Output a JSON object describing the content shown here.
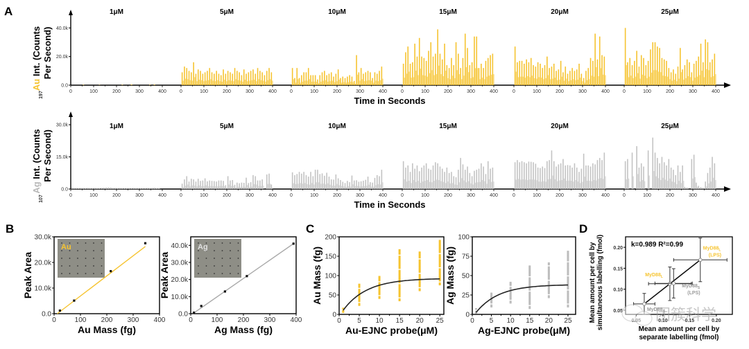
{
  "colors": {
    "au": "#f6c431",
    "ag": "#c3c3c3",
    "axis": "#000000",
    "fit": "#222222"
  },
  "panels": {
    "A": {
      "letter": "A"
    },
    "B": {
      "letter": "B"
    },
    "C": {
      "letter": "C"
    },
    "D": {
      "letter": "D"
    }
  },
  "watermark": {
    "text": "团簇科学"
  },
  "chart_data": [
    {
      "id": "A-top",
      "type": "bar",
      "title": "",
      "element_mass": "197",
      "element": "Au",
      "ylabel_rest": "Int. (Counts",
      "ylabel_line2": "Per Second)",
      "xlabel": "Time in Seconds",
      "ylim": [
        0,
        45000
      ],
      "yticks": [
        "0.0",
        "20.0k",
        "40.0k"
      ],
      "ytick_values": [
        0,
        20000,
        40000
      ],
      "xticks": [
        "0",
        "100",
        "200",
        "300",
        "400"
      ],
      "groups": [
        {
          "label": "1μM",
          "values": [
            0,
            0,
            0,
            0,
            0,
            300,
            0,
            0,
            0,
            0,
            0,
            0,
            200,
            0,
            0,
            0,
            0,
            0,
            0,
            0,
            0,
            0,
            300,
            0,
            0,
            0,
            500,
            0,
            0,
            0,
            0,
            0,
            0,
            0,
            300,
            0,
            400,
            0,
            0,
            0
          ]
        },
        {
          "label": "5μM",
          "values": [
            9000,
            13000,
            12000,
            10000,
            9000,
            16000,
            8000,
            11000,
            10000,
            8000,
            9000,
            10000,
            12000,
            9000,
            8000,
            10000,
            8000,
            7000,
            11000,
            8000,
            10000,
            9000,
            8000,
            12000,
            10000,
            9000,
            7000,
            11000,
            8000,
            9000,
            10000,
            11000,
            8000,
            12000,
            10000,
            9000,
            7000,
            10000,
            12000,
            9000
          ]
        },
        {
          "label": "10μM",
          "values": [
            12000,
            5000,
            12000,
            5000,
            7000,
            9000,
            9000,
            12000,
            7000,
            7000,
            7000,
            4000,
            7000,
            9000,
            10000,
            7000,
            8000,
            9000,
            6000,
            8000,
            11000,
            5000,
            6000,
            5000,
            6000,
            7000,
            6000,
            3000,
            21000,
            9000,
            12000,
            8000,
            9000,
            10000,
            9000,
            5000,
            9000,
            8000,
            10000,
            13000
          ]
        },
        {
          "label": "15μM",
          "values": [
            15000,
            23000,
            27000,
            15000,
            16000,
            29000,
            20000,
            33000,
            20000,
            19000,
            17000,
            24000,
            30000,
            20000,
            22000,
            39000,
            22000,
            18000,
            29000,
            14000,
            12000,
            19000,
            14000,
            30000,
            22000,
            12000,
            19000,
            36000,
            26000,
            14000,
            16000,
            34000,
            34000,
            12000,
            15000,
            12000,
            17000,
            19000,
            21000,
            22000
          ]
        },
        {
          "label": "20μM",
          "values": [
            27000,
            16000,
            17000,
            17000,
            15000,
            18000,
            16000,
            19000,
            14000,
            13000,
            16000,
            15000,
            12000,
            14000,
            20000,
            12000,
            13000,
            15000,
            10000,
            11000,
            17000,
            9000,
            13000,
            8000,
            10000,
            12000,
            10000,
            11000,
            15000,
            8000,
            5000,
            10000,
            12000,
            19000,
            17000,
            36000,
            18000,
            34000,
            21000,
            20000
          ]
        },
        {
          "label": "25μM",
          "values": [
            40000,
            16000,
            19000,
            14000,
            17000,
            24000,
            13000,
            21000,
            19000,
            14000,
            17000,
            25000,
            30000,
            30000,
            27000,
            26000,
            19000,
            18000,
            17000,
            12000,
            9000,
            11000,
            8000,
            13000,
            26000,
            11000,
            14000,
            18000,
            16000,
            9000,
            15000,
            17000,
            20000,
            29000,
            16000,
            32000,
            30000,
            16000,
            18000,
            22000
          ]
        }
      ]
    },
    {
      "id": "A-bottom",
      "type": "bar",
      "title": "",
      "element_mass": "107",
      "element": "Ag",
      "ylabel_rest": "Int. (Counts",
      "ylabel_line2": "Per Second)",
      "xlabel": "Time in Seconds",
      "ylim": [
        0,
        31000
      ],
      "yticks": [
        "0.0",
        "15.0k",
        "30.0k"
      ],
      "ytick_values": [
        0,
        15000,
        30000
      ],
      "xticks": [
        "0",
        "100",
        "200",
        "300",
        "400"
      ],
      "groups": [
        {
          "label": "1μM",
          "values": [
            600,
            500,
            500,
            400,
            500,
            500,
            400,
            500,
            400,
            400,
            500,
            400,
            300,
            500,
            600,
            700,
            800,
            700,
            500,
            500,
            400,
            500,
            400,
            400,
            300,
            400,
            400,
            500,
            400,
            400,
            400,
            300,
            400,
            500,
            400,
            500,
            600,
            400,
            300,
            0
          ]
        },
        {
          "label": "5μM",
          "values": [
            2500,
            4500,
            6000,
            3500,
            4800,
            4500,
            3500,
            4800,
            3800,
            4000,
            5000,
            3600,
            4000,
            3800,
            3700,
            3500,
            4000,
            4000,
            3800,
            1800,
            6000,
            4000,
            4200,
            2000,
            3000,
            2700,
            3000,
            2900,
            5300,
            2800,
            3200,
            6500,
            6000,
            4000,
            4000,
            4500,
            0,
            6800,
            7200,
            2100
          ]
        },
        {
          "label": "10μM",
          "values": [
            7800,
            6500,
            7000,
            8000,
            7200,
            8000,
            6500,
            5800,
            8000,
            6000,
            9000,
            9000,
            7000,
            7300,
            6200,
            7600,
            5800,
            4500,
            4400,
            6800,
            5000,
            4200,
            3400,
            2800,
            3800,
            3200,
            6300,
            4000,
            4100,
            3400,
            3600,
            3900,
            4300,
            5800,
            3200,
            3000,
            5200,
            6500,
            6000,
            9000
          ]
        },
        {
          "label": "15μM",
          "values": [
            13000,
            10000,
            11000,
            8000,
            12000,
            9500,
            11000,
            8300,
            10000,
            11000,
            12000,
            9500,
            9000,
            11000,
            12500,
            12000,
            10500,
            9500,
            8000,
            10000,
            7500,
            8000,
            6000,
            5500,
            9000,
            14500,
            11500,
            9000,
            10500,
            7500,
            6000,
            8500,
            9000,
            9500,
            12000,
            10500,
            7000,
            13000,
            9500,
            10000
          ]
        },
        {
          "label": "20μM",
          "values": [
            12500,
            13500,
            12500,
            13000,
            12500,
            12000,
            12800,
            12700,
            12500,
            11800,
            10000,
            9800,
            10500,
            9800,
            13000,
            13500,
            18000,
            13000,
            10500,
            11500,
            12000,
            14000,
            11000,
            11200,
            11000,
            10000,
            12000,
            10000,
            8000,
            9500,
            16500,
            11000,
            11000,
            10500,
            12000,
            11500,
            13500,
            14500,
            13500,
            17000
          ]
        },
        {
          "label": "25μM",
          "values": [
            13000,
            14000,
            0,
            17000,
            0,
            20000,
            10000,
            12000,
            10500,
            0,
            18000,
            0,
            24000,
            17000,
            14500,
            12000,
            15000,
            12500,
            11000,
            14000,
            10000,
            9000,
            6500,
            11000,
            8000,
            11000,
            1000,
            700,
            0,
            14000,
            16000,
            3000,
            1500,
            900,
            600,
            3500,
            7500,
            10000,
            15000,
            12000
          ]
        }
      ]
    },
    {
      "id": "B-left",
      "type": "scatter",
      "xlabel": "Au Mass (fg)",
      "ylabel": "Peak Area",
      "inset_label": "Au",
      "xlim": [
        0,
        400
      ],
      "ylim": [
        0,
        30000
      ],
      "xticks": [
        "0",
        "100",
        "200",
        "300",
        "400"
      ],
      "xtick_values": [
        0,
        100,
        200,
        300,
        400
      ],
      "yticks": [
        "0.0",
        "10.0k",
        "20.0k",
        "30.0k"
      ],
      "ytick_values": [
        0,
        10000,
        20000,
        30000
      ],
      "points": [
        [
          22,
          1200
        ],
        [
          76,
          5100
        ],
        [
          215,
          16600
        ],
        [
          346,
          27500
        ]
      ],
      "fit": [
        [
          12,
          0
        ],
        [
          346,
          26200
        ]
      ]
    },
    {
      "id": "B-right",
      "type": "scatter",
      "xlabel": "Ag Mass (fg)",
      "ylabel": "Peak Area",
      "inset_label": "Ag",
      "xlim": [
        0,
        400
      ],
      "ylim": [
        0,
        45000
      ],
      "xticks": [
        "0",
        "100",
        "200",
        "300",
        "400"
      ],
      "xtick_values": [
        0,
        100,
        200,
        300,
        400
      ],
      "yticks": [
        "0.0",
        "10.0k",
        "20.0k",
        "30.0k",
        "40.0k"
      ],
      "ytick_values": [
        0,
        10000,
        20000,
        30000,
        40000
      ],
      "points": [
        [
          12,
          600
        ],
        [
          40,
          4500
        ],
        [
          130,
          13000
        ],
        [
          213,
          22000
        ],
        [
          390,
          41000
        ]
      ],
      "fit": [
        [
          8,
          0
        ],
        [
          390,
          41000
        ]
      ]
    },
    {
      "id": "C-left",
      "type": "scatter",
      "xlabel": "Au-EJNC probe(μM)",
      "ylabel": "Au Mass (fg)",
      "xlim": [
        0,
        26
      ],
      "ylim": [
        0,
        200
      ],
      "xticks": [
        "0",
        "5",
        "10",
        "15",
        "20",
        "25"
      ],
      "xtick_values": [
        0,
        5,
        10,
        15,
        20,
        25
      ],
      "yticks": [
        "0",
        "50",
        "100",
        "150",
        "200"
      ],
      "ytick_values": [
        0,
        50,
        100,
        150,
        200
      ],
      "columns": [
        {
          "x": 1,
          "min": 6,
          "max": 15
        },
        {
          "x": 5,
          "min": 24,
          "max": 77
        },
        {
          "x": 10,
          "min": 42,
          "max": 97
        },
        {
          "x": 15,
          "min": 36,
          "max": 166
        },
        {
          "x": 20,
          "min": 62,
          "max": 160
        },
        {
          "x": 25,
          "min": 77,
          "max": 190
        }
      ],
      "fit_model": {
        "plateau": 93,
        "k": 0.17,
        "x0": 0.3
      }
    },
    {
      "id": "C-right",
      "type": "scatter",
      "xlabel": "Ag-EJNC probe(μM)",
      "ylabel": "Ag Mass (fg)",
      "xlim": [
        0,
        27
      ],
      "ylim": [
        0,
        100
      ],
      "xticks": [
        "0",
        "5",
        "10",
        "15",
        "20",
        "25"
      ],
      "xtick_values": [
        0,
        5,
        10,
        15,
        20,
        25
      ],
      "yticks": [
        "0",
        "25",
        "50",
        "75",
        "100"
      ],
      "ytick_values": [
        0,
        25,
        50,
        75,
        100
      ],
      "columns": [
        {
          "x": 1,
          "min": 2,
          "max": 7
        },
        {
          "x": 5,
          "min": 10,
          "max": 27
        },
        {
          "x": 10,
          "min": 15,
          "max": 41
        },
        {
          "x": 15,
          "min": 8,
          "max": 62
        },
        {
          "x": 20,
          "min": 22,
          "max": 66
        },
        {
          "x": 25,
          "min": 10,
          "max": 81
        }
      ],
      "fit_model": {
        "plateau": 38.5,
        "k": 0.17,
        "x0": 0.6
      }
    },
    {
      "id": "D",
      "type": "scatter",
      "xlabel_line1": "Mean amount per cell by",
      "xlabel_line2": "separate labelling (fmol)",
      "ylabel_line1": "Mean amount per cell by",
      "ylabel_line2": "simultaneous labelling (fmol)",
      "annotation": "k=0.989 R²=0.99",
      "xlim": [
        0.03,
        0.23
      ],
      "ylim": [
        0.04,
        0.225
      ],
      "xticks": [
        "0.05",
        "0.10",
        "0.15",
        "0.20"
      ],
      "xtick_values": [
        0.05,
        0.1,
        0.15,
        0.2
      ],
      "yticks": [
        "0.05",
        "0.10",
        "0.15",
        "0.20"
      ],
      "ytick_values": [
        0.05,
        0.1,
        0.15,
        0.2
      ],
      "points": [
        {
          "label": "MyD88S",
          "sub": "S",
          "base": "MyD88",
          "extra": "",
          "x": 0.065,
          "y": 0.065,
          "xerr": 0.02,
          "yerr": 0.025,
          "color": "#9a9a9a"
        },
        {
          "label": "MyD88L",
          "sub": "L",
          "base": "MyD88",
          "extra": "",
          "x": 0.113,
          "y": 0.113,
          "xerr": 0.04,
          "yerr": 0.04,
          "color": "#f6c431"
        },
        {
          "label": "MyD88S (LPS)",
          "sub": "S",
          "base": "MyD88",
          "extra": "(LPS)",
          "x": 0.12,
          "y": 0.114,
          "xerr": 0.035,
          "yerr": 0.035,
          "color": "#9a9a9a"
        },
        {
          "label": "MyD88L (LPS)",
          "sub": "L",
          "base": "MyD88",
          "extra": "(LPS)",
          "x": 0.17,
          "y": 0.17,
          "xerr": 0.05,
          "yerr": 0.052,
          "color": "#f6c431"
        }
      ],
      "fit": [
        [
          0.065,
          0.065
        ],
        [
          0.17,
          0.17
        ]
      ]
    }
  ]
}
